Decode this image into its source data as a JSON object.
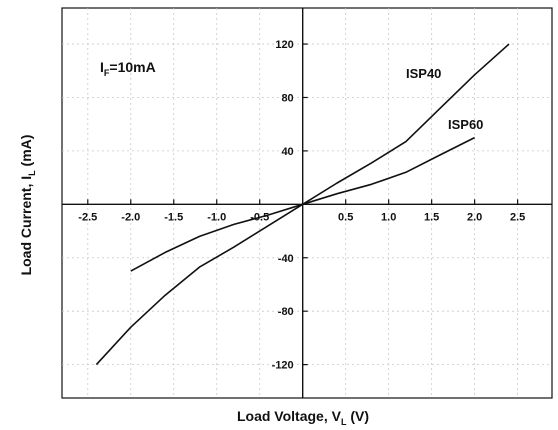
{
  "chart_data": {
    "type": "line",
    "xlabel_main": "Load Voltage, V",
    "xlabel_sub": "L",
    "xlabel_unit": " (V)",
    "ylabel_main": "Load Current, I",
    "ylabel_sub": "L",
    "ylabel_unit": " (mA)",
    "annotation_main": "I",
    "annotation_sub": "F",
    "annotation_rest": "=10mA",
    "xlim": [
      -2.8,
      2.9
    ],
    "ylim": [
      -145,
      147
    ],
    "x_ticks": [
      -2.5,
      -2.0,
      -1.5,
      -1.0,
      -0.5,
      0.5,
      1.0,
      1.5,
      2.0,
      2.5
    ],
    "x_tick_labels": [
      "-2.5",
      "-2.0",
      "-1.5",
      "-1.0",
      "-0.5",
      "0.5",
      "1.0",
      "1.5",
      "2.0",
      "2.5"
    ],
    "y_ticks": [
      -120,
      -80,
      -40,
      40,
      80,
      120
    ],
    "y_tick_labels": [
      "-120",
      "-80",
      "-40",
      "40",
      "80",
      "120"
    ],
    "grid": true,
    "series": [
      {
        "name": "ISP40",
        "x": [
          -2.4,
          -2.0,
          -1.6,
          -1.2,
          -0.8,
          -0.4,
          0.0,
          0.4,
          0.8,
          1.2,
          1.6,
          2.0,
          2.4
        ],
        "y": [
          -120,
          -92,
          -68,
          -47,
          -32,
          -16,
          0,
          16,
          31,
          47,
          72,
          97,
          120
        ]
      },
      {
        "name": "ISP60",
        "x": [
          -2.0,
          -1.6,
          -1.2,
          -0.8,
          -0.4,
          0.0,
          0.4,
          0.8,
          1.2,
          1.6,
          2.0
        ],
        "y": [
          -50,
          -36,
          -24,
          -15,
          -8,
          0,
          8,
          15,
          24,
          37,
          50
        ]
      }
    ]
  }
}
